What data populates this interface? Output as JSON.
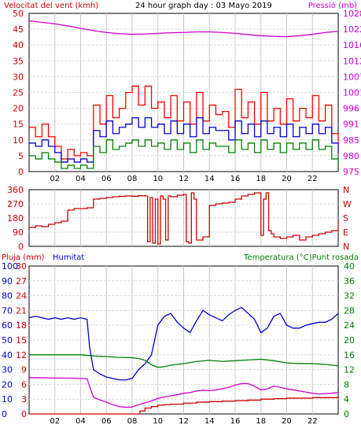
{
  "chart_data": [
    {
      "type": "line",
      "title": "24 hour graph day : 03 Mayo 2019",
      "left_axis_title": "Velocitat del vent (kmh)",
      "right_axis_title": "Pressió (mb)",
      "ylim": [
        0,
        50
      ],
      "y_ticks": [
        "0",
        "5",
        "10",
        "15",
        "20",
        "25",
        "30",
        "35",
        "40",
        "45",
        "50"
      ],
      "y2lim": [
        975,
        1028
      ],
      "y2_ticks": [
        "975",
        "980",
        "985",
        "991",
        "996",
        "1001",
        "1007",
        "1012",
        "1016",
        "1022",
        "1028"
      ],
      "xlim": [
        0,
        24
      ],
      "x_ticks": [
        "02",
        "04",
        "06",
        "08",
        "10",
        "12",
        "14",
        "16",
        "18",
        "20",
        "22"
      ],
      "grid": true,
      "colors": {
        "gust": "#ff0000",
        "average": "#0000cc",
        "low": "#008000",
        "pressure": "#cc00cc",
        "left_axis": "#cc0000",
        "right_axis": "#cc00cc"
      },
      "series": [
        {
          "axis": "left",
          "color": "#ff0000",
          "x": [
            0,
            0.5,
            1,
            1.5,
            2,
            2.5,
            3,
            3.5,
            4,
            4.5,
            5,
            5.5,
            6,
            6.5,
            7,
            7.5,
            8,
            8.5,
            9,
            9.5,
            10,
            10.5,
            11,
            11.5,
            12,
            12.5,
            13,
            13.5,
            14,
            14.5,
            15,
            15.5,
            16,
            16.5,
            17,
            17.5,
            18,
            18.5,
            19,
            19.5,
            20,
            20.5,
            21,
            21.5,
            22,
            22.5,
            23,
            23.5,
            24
          ],
          "y": [
            14,
            11,
            15,
            11,
            8,
            4,
            7,
            5,
            6,
            5,
            21,
            15,
            24,
            17,
            20,
            25,
            27,
            21,
            27,
            20,
            22,
            17,
            24,
            16,
            22,
            15,
            25,
            16,
            21,
            18,
            19,
            14,
            26,
            17,
            22,
            15,
            25,
            16,
            20,
            15,
            23,
            16,
            20,
            17,
            24,
            16,
            21,
            12,
            9
          ]
        },
        {
          "axis": "left",
          "color": "#0000cc",
          "x": [
            0,
            0.5,
            1,
            1.5,
            2,
            2.5,
            3,
            3.5,
            4,
            4.5,
            5,
            5.5,
            6,
            6.5,
            7,
            7.5,
            8,
            8.5,
            9,
            9.5,
            10,
            10.5,
            11,
            11.5,
            12,
            12.5,
            13,
            13.5,
            14,
            14.5,
            15,
            15.5,
            16,
            16.5,
            17,
            17.5,
            18,
            18.5,
            19,
            19.5,
            20,
            20.5,
            21,
            21.5,
            22,
            22.5,
            23,
            23.5,
            24
          ],
          "y": [
            9,
            8,
            10,
            8,
            6,
            3,
            4,
            3,
            4,
            3,
            13,
            11,
            16,
            12,
            14,
            15,
            17,
            14,
            17,
            14,
            15,
            12,
            16,
            12,
            15,
            11,
            17,
            12,
            14,
            13,
            13,
            10,
            16,
            12,
            15,
            11,
            16,
            12,
            14,
            11,
            15,
            11,
            14,
            12,
            15,
            12,
            14,
            9,
            6
          ]
        },
        {
          "axis": "left",
          "color": "#008000",
          "x": [
            0,
            0.5,
            1,
            1.5,
            2,
            2.5,
            3,
            3.5,
            4,
            4.5,
            5,
            5.5,
            6,
            6.5,
            7,
            7.5,
            8,
            8.5,
            9,
            9.5,
            10,
            10.5,
            11,
            11.5,
            12,
            12.5,
            13,
            13.5,
            14,
            14.5,
            15,
            15.5,
            16,
            16.5,
            17,
            17.5,
            18,
            18.5,
            19,
            19.5,
            20,
            20.5,
            21,
            21.5,
            22,
            22.5,
            23,
            23.5,
            24
          ],
          "y": [
            5,
            4,
            6,
            4,
            3,
            1,
            2,
            1,
            2,
            1,
            8,
            6,
            10,
            7,
            8,
            9,
            10,
            8,
            10,
            8,
            9,
            7,
            10,
            7,
            9,
            6,
            10,
            7,
            9,
            8,
            8,
            6,
            10,
            7,
            9,
            6,
            10,
            7,
            9,
            6,
            9,
            7,
            9,
            7,
            10,
            7,
            8,
            4,
            2
          ]
        },
        {
          "axis": "right",
          "color": "#cc00cc",
          "x": [
            0,
            1,
            2,
            3,
            4,
            5,
            6,
            7,
            8,
            9,
            10,
            11,
            12,
            13,
            14,
            15,
            16,
            17,
            18,
            19,
            20,
            21,
            22,
            23,
            24
          ],
          "y": [
            1025.5,
            1025,
            1024.5,
            1023.8,
            1023,
            1022.2,
            1021.6,
            1021.2,
            1021,
            1021.1,
            1021.3,
            1021.5,
            1021.6,
            1021.8,
            1021.8,
            1021.6,
            1021.3,
            1020.9,
            1020.5,
            1020.3,
            1020.2,
            1020.5,
            1021,
            1021.6,
            1022
          ]
        }
      ]
    },
    {
      "type": "line",
      "ylim": [
        0,
        360
      ],
      "y_ticks": [
        "0",
        "90",
        "180",
        "270",
        "360"
      ],
      "right_labels": [
        "N",
        "W",
        "S",
        "E",
        "N"
      ],
      "xlim": [
        0,
        24
      ],
      "grid": true,
      "colors": {
        "direction": "#cc0000"
      },
      "series": [
        {
          "axis": "left",
          "color": "#cc0000",
          "x": [
            0,
            0.5,
            1,
            1.5,
            2,
            2.5,
            3,
            3.5,
            4,
            4.5,
            5,
            5.5,
            6,
            6.5,
            7,
            7.5,
            8,
            8.5,
            9,
            9.2,
            9.4,
            9.6,
            9.8,
            10,
            10.2,
            10.4,
            10.6,
            10.8,
            11,
            11.5,
            12,
            12.2,
            12.4,
            12.6,
            12.8,
            13,
            13.5,
            14,
            14.5,
            15,
            15.5,
            16,
            16.5,
            17,
            17.5,
            18,
            18.2,
            18.4,
            18.6,
            18.8,
            19,
            19.5,
            20,
            20.5,
            21,
            21.5,
            22,
            22.5,
            23,
            23.5,
            24
          ],
          "y": [
            120,
            130,
            125,
            140,
            150,
            160,
            230,
            240,
            240,
            245,
            300,
            305,
            310,
            315,
            318,
            320,
            318,
            322,
            320,
            30,
            310,
            20,
            300,
            15,
            320,
            300,
            40,
            320,
            315,
            325,
            330,
            30,
            20,
            340,
            300,
            40,
            60,
            260,
            270,
            275,
            280,
            300,
            320,
            330,
            340,
            70,
            300,
            340,
            100,
            80,
            60,
            50,
            60,
            70,
            40,
            60,
            70,
            80,
            90,
            100,
            160
          ]
        }
      ]
    },
    {
      "type": "line",
      "left_axis_title": "Pluja (mm)",
      "humidity_axis_title": "Humitat",
      "right_axis_title": "Temperatura (°C)Punt rosada",
      "rain_lim": [
        0,
        30
      ],
      "rain_ticks": [
        "0",
        "3",
        "6",
        "9",
        "12",
        "15",
        "18",
        "21",
        "24",
        "27",
        "30"
      ],
      "humidity_lim": [
        0,
        100
      ],
      "humidity_ticks": [
        "0",
        "10",
        "20",
        "30",
        "40",
        "50",
        "60",
        "70",
        "80",
        "90",
        "100"
      ],
      "temp_lim": [
        0,
        40
      ],
      "temp_ticks": [
        "0",
        "4",
        "8",
        "12",
        "16",
        "20",
        "24",
        "28",
        "32",
        "36",
        "40"
      ],
      "x_ticks": [
        "02",
        "04",
        "06",
        "08",
        "10",
        "12",
        "14",
        "16",
        "18",
        "20",
        "22"
      ],
      "xlim": [
        0,
        24
      ],
      "grid": true,
      "colors": {
        "rain": "#cc0000",
        "humidity": "#0000cc",
        "temperature": "#008000",
        "dewpoint": "#cc00cc",
        "temp_axis": "#008000"
      },
      "series": [
        {
          "axis": "rain",
          "color": "#cc0000",
          "x": [
            0,
            8.5,
            8.6,
            9,
            9.5,
            10,
            10.5,
            11,
            11.5,
            12,
            13,
            14,
            15,
            16,
            17,
            18,
            19,
            20,
            21,
            22,
            23,
            24
          ],
          "y": [
            0,
            0,
            0.6,
            1.2,
            1.5,
            1.8,
            1.9,
            2.0,
            2.0,
            2.2,
            2.4,
            2.5,
            2.6,
            2.7,
            2.8,
            3.0,
            3.1,
            3.2,
            3.2,
            3.3,
            3.3,
            3.3
          ]
        },
        {
          "axis": "humidity",
          "color": "#0000cc",
          "x": [
            0,
            0.5,
            1,
            1.5,
            2,
            2.5,
            3,
            3.5,
            4,
            4.5,
            4.7,
            5,
            5.5,
            6,
            6.5,
            7,
            7.5,
            8,
            8.5,
            9,
            9.5,
            10,
            10.5,
            11,
            11.5,
            12,
            12.5,
            13,
            13.5,
            14,
            14.5,
            15,
            15.5,
            16,
            16.5,
            17,
            17.5,
            18,
            18.5,
            19,
            19.5,
            20,
            20.5,
            21,
            21.5,
            22,
            22.5,
            23,
            23.5,
            24
          ],
          "y": [
            65,
            66,
            65,
            64,
            65,
            64,
            65,
            64,
            65,
            64,
            45,
            30,
            27,
            25,
            24,
            23,
            23,
            24,
            30,
            34,
            40,
            60,
            66,
            68,
            62,
            58,
            55,
            63,
            70,
            67,
            65,
            63,
            67,
            70,
            72,
            68,
            64,
            55,
            58,
            66,
            68,
            60,
            58,
            58,
            60,
            61,
            62,
            62,
            64,
            68
          ]
        },
        {
          "axis": "temp",
          "color": "#008000",
          "x": [
            0,
            1,
            2,
            3,
            4,
            5,
            6,
            7,
            8,
            8.5,
            9,
            9.5,
            10,
            10.5,
            11,
            12,
            13,
            14,
            15,
            16,
            17,
            18,
            19,
            20,
            21,
            22,
            23,
            24
          ],
          "y": [
            16,
            16,
            16,
            16,
            16,
            15.7,
            15.5,
            15.3,
            15.2,
            15.0,
            14.5,
            13.3,
            12.6,
            12.8,
            13.2,
            13.6,
            14.2,
            14.5,
            14.2,
            14.4,
            14.6,
            14.8,
            14.4,
            13.8,
            13.6,
            13.6,
            13.4,
            13.0
          ]
        },
        {
          "axis": "temp",
          "color": "#cc00cc",
          "x": [
            0,
            1,
            2,
            3,
            4,
            4.5,
            4.8,
            5,
            5.5,
            6,
            6.5,
            7,
            7.5,
            8,
            8.5,
            9,
            9.5,
            10,
            10.5,
            11,
            11.5,
            12,
            12.5,
            13,
            13.5,
            14,
            14.5,
            15,
            15.5,
            16,
            16.5,
            17,
            17.5,
            18,
            18.5,
            19,
            19.5,
            20,
            20.5,
            21,
            21.5,
            22,
            22.5,
            23,
            23.5,
            24
          ],
          "y": [
            9.8,
            9.8,
            9.7,
            9.7,
            9.6,
            9.5,
            6.5,
            4.5,
            3.8,
            3.2,
            2.5,
            2.0,
            1.8,
            1.9,
            2.5,
            3.0,
            3.5,
            4.2,
            4.6,
            4.9,
            5.2,
            5.6,
            5.8,
            6.2,
            6.4,
            6.3,
            6.5,
            6.8,
            7.2,
            7.8,
            8.2,
            8.2,
            7.5,
            6.5,
            6.8,
            7.5,
            7.2,
            6.8,
            6.5,
            6.2,
            5.9,
            5.6,
            5.4,
            5.5,
            5.6,
            5.8
          ]
        }
      ]
    }
  ]
}
